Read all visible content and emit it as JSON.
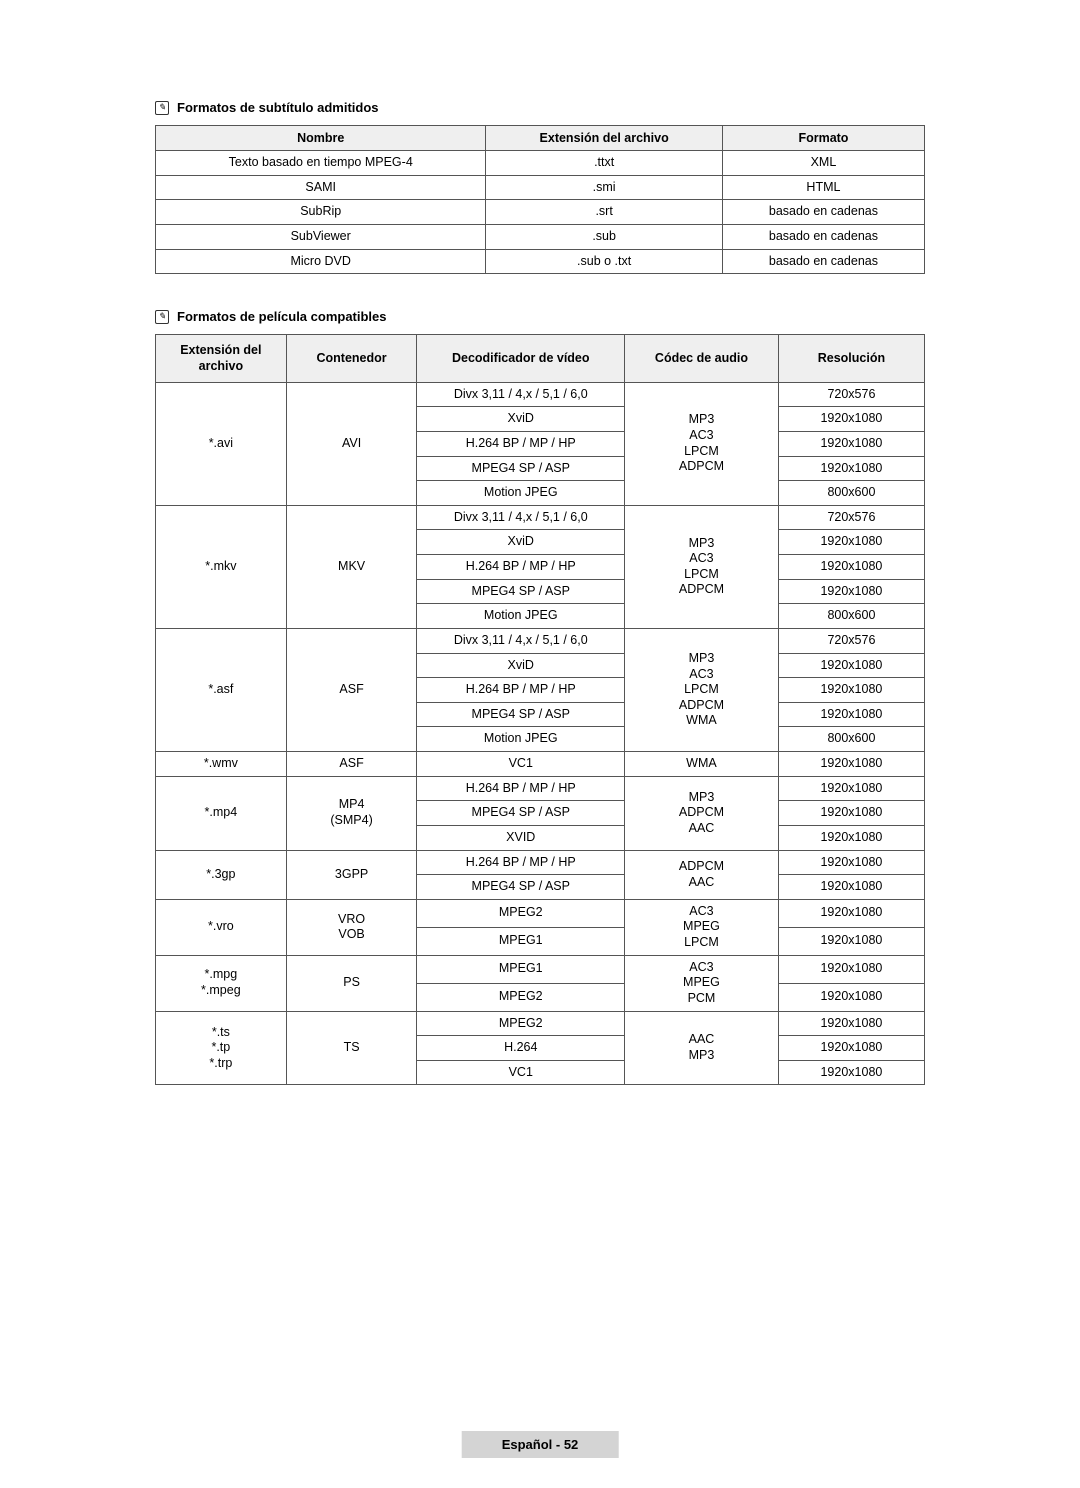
{
  "section1": {
    "title": "Formatos de subtítulo admitidos",
    "headers": [
      "Nombre",
      "Extensión del archivo",
      "Formato"
    ],
    "rows": [
      [
        "Texto basado en tiempo MPEG-4",
        ".ttxt",
        "XML"
      ],
      [
        "SAMI",
        ".smi",
        "HTML"
      ],
      [
        "SubRip",
        ".srt",
        "basado en cadenas"
      ],
      [
        "SubViewer",
        ".sub",
        "basado en cadenas"
      ],
      [
        "Micro DVD",
        ".sub o .txt",
        "basado en cadenas"
      ]
    ]
  },
  "section2": {
    "title": "Formatos de película compatibles",
    "headers": [
      "Extensión del archivo",
      "Contenedor",
      "Decodificador de vídeo",
      "Códec de audio",
      "Resolución"
    ],
    "groups": [
      {
        "ext": "*.avi",
        "container": "AVI",
        "audio": "MP3\nAC3\nLPCM\nADPCM",
        "rows": [
          {
            "decoder": "Divx 3,11 / 4,x / 5,1 / 6,0",
            "res": "720x576"
          },
          {
            "decoder": "XviD",
            "res": "1920x1080"
          },
          {
            "decoder": "H.264 BP / MP / HP",
            "res": "1920x1080"
          },
          {
            "decoder": "MPEG4 SP / ASP",
            "res": "1920x1080"
          },
          {
            "decoder": "Motion JPEG",
            "res": "800x600"
          }
        ]
      },
      {
        "ext": "*.mkv",
        "container": "MKV",
        "audio": "MP3\nAC3\nLPCM\nADPCM",
        "rows": [
          {
            "decoder": "Divx 3,11 / 4,x / 5,1 / 6,0",
            "res": "720x576"
          },
          {
            "decoder": "XviD",
            "res": "1920x1080"
          },
          {
            "decoder": "H.264 BP / MP / HP",
            "res": "1920x1080"
          },
          {
            "decoder": "MPEG4 SP / ASP",
            "res": "1920x1080"
          },
          {
            "decoder": "Motion JPEG",
            "res": "800x600"
          }
        ]
      },
      {
        "ext": "*.asf",
        "container": "ASF",
        "audio": "MP3\nAC3\nLPCM\nADPCM\nWMA",
        "rows": [
          {
            "decoder": "Divx 3,11 / 4,x / 5,1 / 6,0",
            "res": "720x576"
          },
          {
            "decoder": "XviD",
            "res": "1920x1080"
          },
          {
            "decoder": "H.264 BP / MP / HP",
            "res": "1920x1080"
          },
          {
            "decoder": "MPEG4 SP / ASP",
            "res": "1920x1080"
          },
          {
            "decoder": "Motion JPEG",
            "res": "800x600"
          }
        ]
      },
      {
        "ext": "*.wmv",
        "container": "ASF",
        "audio": "WMA",
        "rows": [
          {
            "decoder": "VC1",
            "res": "1920x1080"
          }
        ]
      },
      {
        "ext": "*.mp4",
        "container": "MP4\n(SMP4)",
        "audio": "MP3\nADPCM\nAAC",
        "rows": [
          {
            "decoder": "H.264 BP / MP / HP",
            "res": "1920x1080"
          },
          {
            "decoder": "MPEG4 SP / ASP",
            "res": "1920x1080"
          },
          {
            "decoder": "XVID",
            "res": "1920x1080"
          }
        ]
      },
      {
        "ext": "*.3gp",
        "container": "3GPP",
        "audio": "ADPCM\nAAC",
        "rows": [
          {
            "decoder": "H.264 BP / MP / HP",
            "res": "1920x1080"
          },
          {
            "decoder": "MPEG4 SP / ASP",
            "res": "1920x1080"
          }
        ]
      },
      {
        "ext": "*.vro",
        "container": "VRO\nVOB",
        "audio": "AC3\nMPEG\nLPCM",
        "rows": [
          {
            "decoder": "MPEG2",
            "res": "1920x1080"
          },
          {
            "decoder": "MPEG1",
            "res": "1920x1080"
          }
        ]
      },
      {
        "ext": "*.mpg\n*.mpeg",
        "container": "PS",
        "audio": "AC3\nMPEG\nPCM",
        "rows": [
          {
            "decoder": "MPEG1",
            "res": "1920x1080"
          },
          {
            "decoder": "MPEG2",
            "res": "1920x1080"
          }
        ]
      },
      {
        "ext": "*.ts\n*.tp\n*.trp",
        "container": "TS",
        "audio": "AAC\nMP3",
        "rows": [
          {
            "decoder": "MPEG2",
            "res": "1920x1080"
          },
          {
            "decoder": "H.264",
            "res": "1920x1080"
          },
          {
            "decoder": "VC1",
            "res": "1920x1080"
          }
        ]
      }
    ]
  },
  "footer": "Español - 52",
  "colors": {
    "header_bg": "#efefef",
    "border": "#555555",
    "footer_bg": "#d4d4d4"
  }
}
